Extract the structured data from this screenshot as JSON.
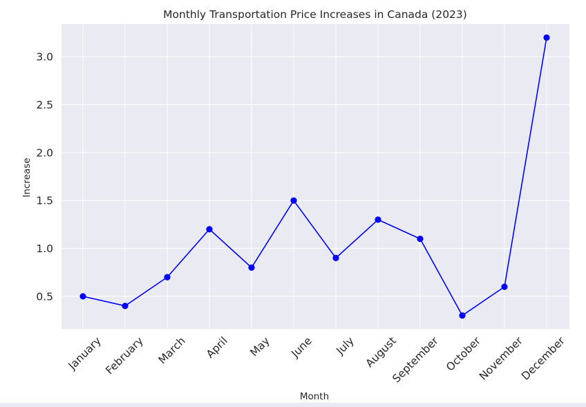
{
  "chart_data": {
    "type": "line",
    "title": "Monthly Transportation Price Increases in Canada (2023)",
    "xlabel": "Month",
    "ylabel": "Increase",
    "categories": [
      "January",
      "February",
      "March",
      "April",
      "May",
      "June",
      "July",
      "August",
      "September",
      "October",
      "November",
      "December"
    ],
    "series": [
      {
        "values": [
          0.5,
          0.4,
          0.7,
          1.2,
          0.8,
          1.5,
          0.9,
          1.3,
          1.1,
          0.3,
          0.6,
          3.2
        ]
      }
    ],
    "yticks": [
      "0.5",
      "1.0",
      "1.5",
      "2.0",
      "2.5",
      "3.0"
    ],
    "ylim": [
      0.16,
      3.34
    ],
    "grid": true,
    "legend": "none",
    "colors": {
      "line": "#0000ff",
      "plot_background": "#eaeaf2",
      "grid": "#ffffff",
      "text": "#262626"
    },
    "marker": "circle"
  }
}
